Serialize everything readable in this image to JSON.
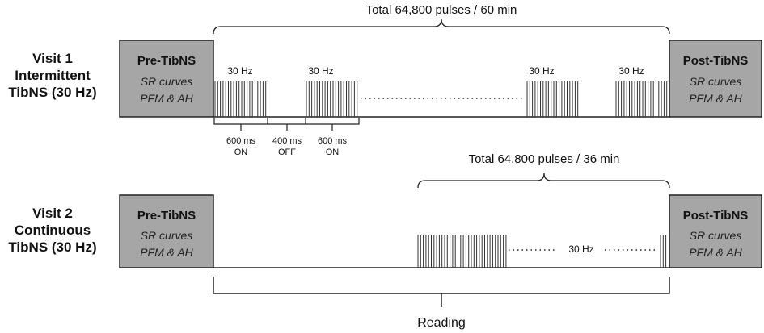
{
  "visit1": {
    "label_lines": [
      "Visit 1",
      "Intermittent",
      "TibNS (30 Hz)"
    ],
    "pre_box": {
      "title": "Pre-TibNS",
      "lines": [
        "SR curves",
        "PFM & AH"
      ]
    },
    "post_box": {
      "title": "Post-TibNS",
      "lines": [
        "SR curves",
        "PFM & AH"
      ]
    },
    "total_label": "Total 64,800 pulses / 60 min",
    "burst_label": "30 Hz",
    "intervals": [
      {
        "line1": "600 ms",
        "line2": "ON"
      },
      {
        "line1": "400 ms",
        "line2": "OFF"
      },
      {
        "line1": "600 ms",
        "line2": "ON"
      }
    ]
  },
  "visit2": {
    "label_lines": [
      "Visit 2",
      "Continuous",
      "TibNS (30 Hz)"
    ],
    "pre_box": {
      "title": "Pre-TibNS",
      "lines": [
        "SR curves",
        "PFM & AH"
      ]
    },
    "post_box": {
      "title": "Post-TibNS",
      "lines": [
        "SR curves",
        "PFM & AH"
      ]
    },
    "total_label": "Total 64,800 pulses / 36 min",
    "freq_label": "30 Hz"
  },
  "reading_label": "Reading",
  "colors": {
    "box_fill": "#a6a6a6",
    "stroke": "#222222"
  }
}
